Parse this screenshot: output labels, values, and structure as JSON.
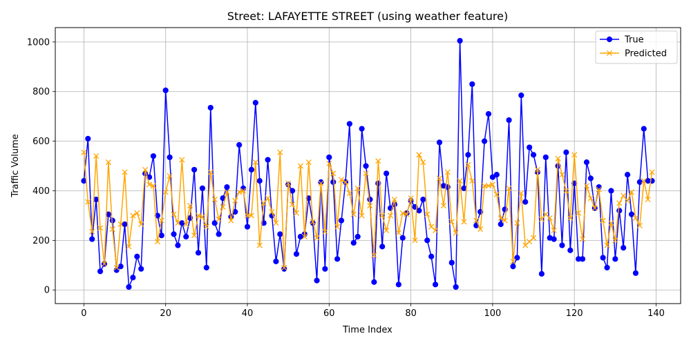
{
  "chart_data": {
    "type": "line",
    "title": "Street: LAFAYETTE STREET (using weather feature)",
    "xlabel": "Time Index",
    "ylabel": "Traffic Volume",
    "xlim": [
      -7,
      146
    ],
    "ylim": [
      -55,
      1058
    ],
    "xticks": [
      0,
      20,
      40,
      60,
      80,
      100,
      120,
      140
    ],
    "yticks": [
      0,
      200,
      400,
      600,
      800,
      1000
    ],
    "grid": true,
    "legend_position": "top-right",
    "x": [
      0,
      1,
      2,
      3,
      4,
      5,
      6,
      7,
      8,
      9,
      10,
      11,
      12,
      13,
      14,
      15,
      16,
      17,
      18,
      19,
      20,
      21,
      22,
      23,
      24,
      25,
      26,
      27,
      28,
      29,
      30,
      31,
      32,
      33,
      34,
      35,
      36,
      37,
      38,
      39,
      40,
      41,
      42,
      43,
      44,
      45,
      46,
      47,
      48,
      49,
      50,
      51,
      52,
      53,
      54,
      55,
      56,
      57,
      58,
      59,
      60,
      61,
      62,
      63,
      64,
      65,
      66,
      67,
      68,
      69,
      70,
      71,
      72,
      73,
      74,
      75,
      76,
      77,
      78,
      79,
      80,
      81,
      82,
      83,
      84,
      85,
      86,
      87,
      88,
      89,
      90,
      91,
      92,
      93,
      94,
      95,
      96,
      97,
      98,
      99,
      100,
      101,
      102,
      103,
      104,
      105,
      106,
      107,
      108,
      109,
      110,
      111,
      112,
      113,
      114,
      115,
      116,
      117,
      118,
      119,
      120,
      121,
      122,
      123,
      124,
      125,
      126,
      127,
      128,
      129,
      130,
      131,
      132,
      133,
      134,
      135,
      136,
      137,
      138,
      139
    ],
    "series": [
      {
        "name": "True",
        "color": "#0000ff",
        "marker": "circle",
        "values": [
          440,
          610,
          205,
          365,
          75,
          105,
          305,
          280,
          80,
          95,
          265,
          12,
          50,
          135,
          85,
          470,
          455,
          540,
          300,
          220,
          805,
          535,
          225,
          180,
          270,
          215,
          290,
          485,
          150,
          410,
          90,
          735,
          270,
          225,
          370,
          415,
          295,
          315,
          585,
          410,
          255,
          485,
          755,
          440,
          270,
          525,
          300,
          115,
          225,
          85,
          425,
          400,
          145,
          215,
          225,
          370,
          270,
          38,
          435,
          85,
          535,
          435,
          125,
          280,
          435,
          670,
          190,
          215,
          650,
          500,
          365,
          32,
          430,
          175,
          470,
          330,
          345,
          22,
          210,
          310,
          360,
          335,
          320,
          365,
          200,
          135,
          22,
          595,
          420,
          415,
          110,
          12,
          1005,
          410,
          545,
          830,
          260,
          315,
          600,
          710,
          455,
          465,
          265,
          325,
          685,
          95,
          130,
          785,
          355,
          575,
          545,
          475,
          65,
          535,
          210,
          205,
          500,
          180,
          555,
          160,
          430,
          125,
          125,
          515,
          450,
          330,
          415,
          130,
          90,
          400,
          125,
          320,
          170,
          465,
          305,
          68,
          435,
          650,
          440,
          440
        ]
      },
      {
        "name": "Predicted",
        "color": "#ffa500",
        "marker": "x",
        "values": [
          555,
          355,
          235,
          540,
          250,
          105,
          515,
          245,
          90,
          265,
          475,
          175,
          300,
          310,
          265,
          485,
          425,
          420,
          195,
          280,
          395,
          460,
          305,
          270,
          525,
          265,
          340,
          220,
          300,
          295,
          255,
          475,
          365,
          285,
          335,
          395,
          280,
          360,
          395,
          400,
          300,
          300,
          515,
          180,
          350,
          370,
          315,
          270,
          555,
          90,
          430,
          345,
          310,
          500,
          215,
          515,
          275,
          210,
          430,
          235,
          510,
          470,
          255,
          445,
          435,
          390,
          305,
          410,
          300,
          470,
          340,
          140,
          520,
          300,
          240,
          300,
          365,
          230,
          310,
          305,
          370,
          200,
          545,
          515,
          305,
          255,
          240,
          450,
          340,
          475,
          275,
          230,
          440,
          275,
          505,
          440,
          280,
          245,
          420,
          420,
          425,
          385,
          290,
          280,
          410,
          115,
          270,
          390,
          180,
          195,
          210,
          485,
          285,
          305,
          290,
          240,
          530,
          465,
          400,
          290,
          545,
          310,
          205,
          420,
          370,
          330,
          405,
          280,
          180,
          270,
          200,
          350,
          380,
          360,
          395,
          290,
          260,
          440,
          365,
          475
        ]
      }
    ]
  }
}
